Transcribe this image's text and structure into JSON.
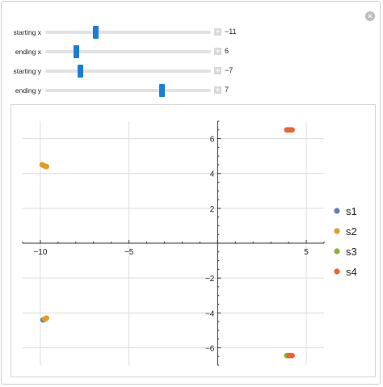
{
  "sliders": [
    {
      "label": "starting x",
      "value": -11,
      "display": "−11",
      "min": -20,
      "max": 10
    },
    {
      "label": "ending x",
      "value": 6,
      "display": "6",
      "min": 3,
      "max": 20
    },
    {
      "label": "starting y",
      "value": -7,
      "display": "−7",
      "min": -10,
      "max": 5
    },
    {
      "label": "ending y",
      "value": 7,
      "display": "7",
      "min": 2,
      "max": 9
    }
  ],
  "chart_data": {
    "type": "scatter",
    "xlim": [
      -11,
      6
    ],
    "ylim": [
      -7,
      7
    ],
    "x_ticks": [
      -10,
      -5,
      5
    ],
    "x_tick_labels": [
      "−10",
      "−5",
      "5"
    ],
    "y_ticks": [
      -6,
      -4,
      -2,
      2,
      4,
      6
    ],
    "y_tick_labels": [
      "−6",
      "−4",
      "−2",
      "2",
      "4",
      "6"
    ],
    "grid": true,
    "legend_position": "right",
    "series": [
      {
        "name": "s1",
        "color": "#5e81b5",
        "points": [
          [
            -9.85,
            -4.4
          ],
          [
            -9.8,
            -4.38
          ]
        ]
      },
      {
        "name": "s2",
        "color": "#e19c24",
        "points": [
          [
            -9.9,
            4.5
          ],
          [
            -9.8,
            4.45
          ],
          [
            -9.7,
            4.4
          ],
          [
            -9.65,
            4.4
          ],
          [
            -9.75,
            -4.35
          ],
          [
            -9.7,
            -4.32
          ],
          [
            -9.65,
            -4.3
          ]
        ]
      },
      {
        "name": "s3",
        "color": "#8fb032",
        "points": [
          [
            3.9,
            -6.45
          ],
          [
            3.95,
            -6.45
          ],
          [
            4.0,
            -6.45
          ]
        ]
      },
      {
        "name": "s4",
        "color": "#eb6235",
        "points": [
          [
            3.9,
            6.5
          ],
          [
            3.95,
            6.5
          ],
          [
            4.0,
            6.5
          ],
          [
            4.1,
            6.5
          ],
          [
            4.2,
            6.5
          ],
          [
            4.05,
            -6.45
          ],
          [
            4.1,
            -6.45
          ],
          [
            4.2,
            -6.45
          ]
        ]
      }
    ]
  }
}
